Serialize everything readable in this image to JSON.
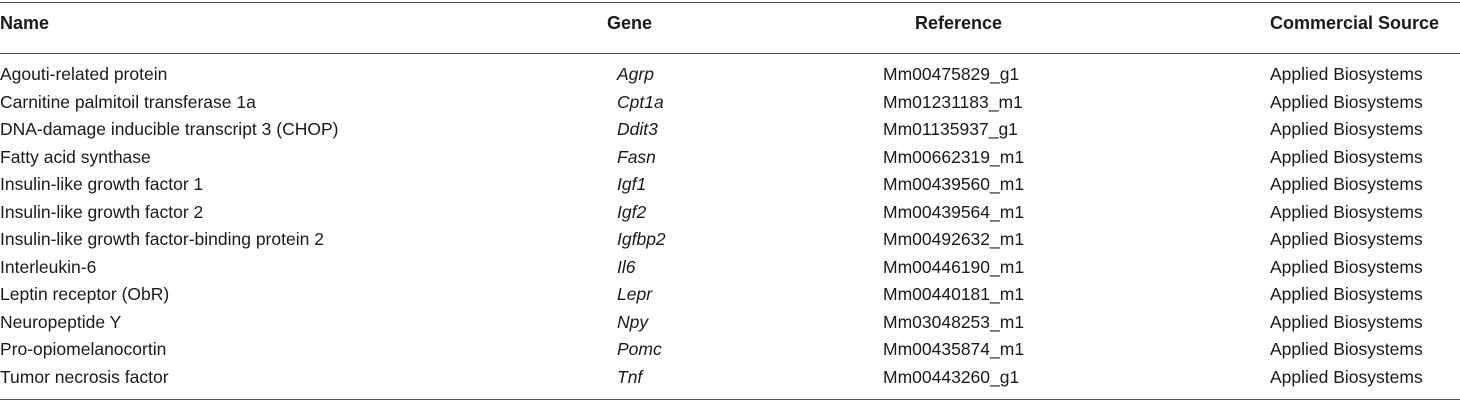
{
  "table": {
    "headers": {
      "name": "Name",
      "gene": "Gene",
      "reference": "Reference",
      "source": "Commercial Source"
    },
    "rows": [
      {
        "name": "Agouti-related protein",
        "gene": "Agrp",
        "reference": "Mm00475829_g1",
        "source": "Applied Biosystems"
      },
      {
        "name": "Carnitine palmitoil transferase 1a",
        "gene": "Cpt1a",
        "reference": "Mm01231183_m1",
        "source": "Applied Biosystems"
      },
      {
        "name": "DNA-damage inducible transcript 3 (CHOP)",
        "gene": "Ddit3",
        "reference": "Mm01135937_g1",
        "source": "Applied Biosystems"
      },
      {
        "name": "Fatty acid synthase",
        "gene": "Fasn",
        "reference": "Mm00662319_m1",
        "source": "Applied Biosystems"
      },
      {
        "name": "Insulin-like growth factor 1",
        "gene": "Igf1",
        "reference": "Mm00439560_m1",
        "source": "Applied Biosystems"
      },
      {
        "name": "Insulin-like growth factor 2",
        "gene": "Igf2",
        "reference": "Mm00439564_m1",
        "source": "Applied Biosystems"
      },
      {
        "name": "Insulin-like growth factor-binding protein 2",
        "gene": "Igfbp2",
        "reference": "Mm00492632_m1",
        "source": "Applied Biosystems"
      },
      {
        "name": "Interleukin-6",
        "gene": "Il6",
        "reference": "Mm00446190_m1",
        "source": "Applied Biosystems"
      },
      {
        "name": "Leptin receptor (ObR)",
        "gene": "Lepr",
        "reference": "Mm00440181_m1",
        "source": "Applied Biosystems"
      },
      {
        "name": "Neuropeptide Y",
        "gene": "Npy",
        "reference": "Mm03048253_m1",
        "source": "Applied Biosystems"
      },
      {
        "name": "Pro-opiomelanocortin",
        "gene": "Pomc",
        "reference": "Mm00435874_m1",
        "source": "Applied Biosystems"
      },
      {
        "name": "Tumor necrosis factor",
        "gene": "Tnf",
        "reference": "Mm00443260_g1",
        "source": "Applied Biosystems"
      }
    ]
  }
}
